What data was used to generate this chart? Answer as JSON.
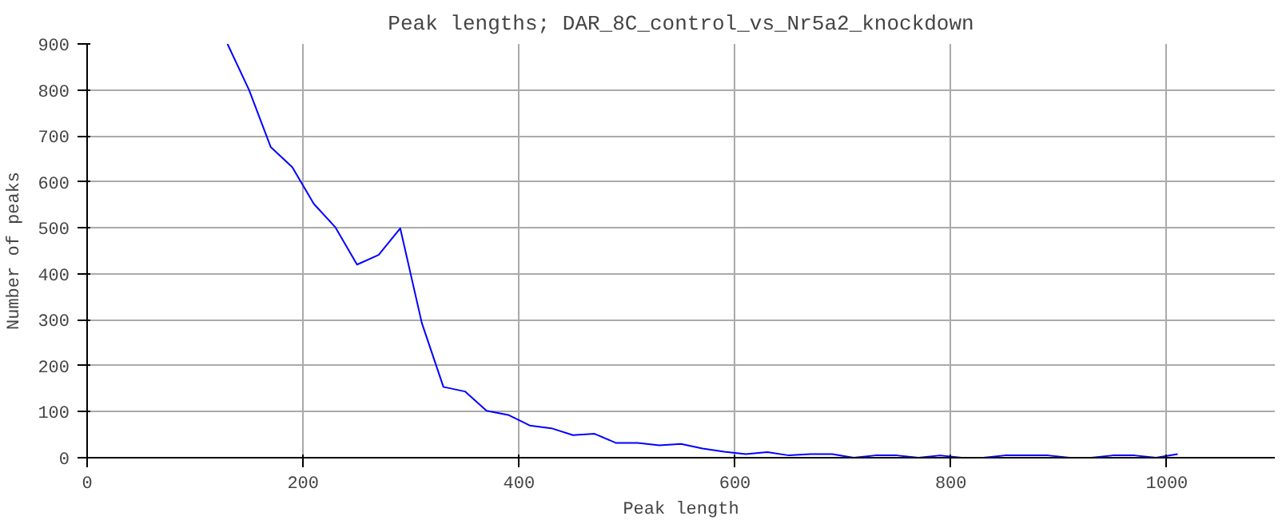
{
  "chart_data": {
    "type": "line",
    "title": "Peak lengths; DAR_8C_control_vs_Nr5a2_knockdown",
    "xlabel": "Peak length",
    "ylabel": "Number of peaks",
    "x": [
      130,
      150,
      170,
      190,
      210,
      230,
      250,
      270,
      290,
      310,
      330,
      350,
      370,
      390,
      410,
      430,
      450,
      470,
      490,
      510,
      530,
      550,
      570,
      590,
      610,
      630,
      650,
      670,
      690,
      710,
      730,
      750,
      770,
      790,
      810,
      830,
      850,
      870,
      890,
      910,
      930,
      950,
      970,
      990,
      1010
    ],
    "series": [
      {
        "color": "#0000ff",
        "values": [
          900,
          800,
          676,
          632,
          552,
          501,
          420,
          441,
          499,
          293,
          154,
          144,
          102,
          93,
          70,
          64,
          49,
          52,
          32,
          32,
          27,
          30,
          20,
          13,
          8,
          12,
          5,
          8,
          8,
          0,
          5,
          5,
          0,
          5,
          0,
          0,
          5,
          5,
          5,
          0,
          0,
          5,
          5,
          0,
          8
        ]
      }
    ],
    "xlim": [
      0,
      1100
    ],
    "ylim": [
      0,
      900
    ],
    "xticks": [
      0,
      200,
      400,
      600,
      800,
      1000
    ],
    "yticks": [
      0,
      100,
      200,
      300,
      400,
      500,
      600,
      700,
      800,
      900
    ],
    "grid": true,
    "marker": "none",
    "line_style": "solid"
  }
}
